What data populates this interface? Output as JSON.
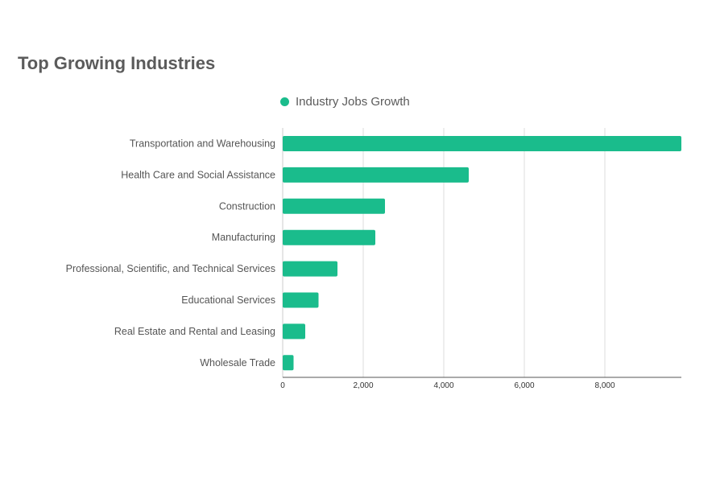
{
  "chart_data": {
    "type": "bar",
    "orientation": "horizontal",
    "title": "Top Growing Industries",
    "xlabel": "",
    "ylabel": "",
    "categories": [
      "Transportation and Warehousing",
      "Health Care and Social Assistance",
      "Construction",
      "Manufacturing",
      "Professional, Scientific, and Technical Services",
      "Educational Services",
      "Real Estate and Rental and Leasing",
      "Wholesale Trade"
    ],
    "series": [
      {
        "name": "Industry Jobs Growth",
        "color": "#1abc8c",
        "values": [
          9900,
          4620,
          2540,
          2300,
          1360,
          890,
          560,
          270
        ]
      }
    ],
    "xlim": [
      0,
      9900
    ],
    "x_ticks": [
      0,
      2000,
      4000,
      6000,
      8000
    ],
    "x_tick_labels": [
      "0",
      "2,000",
      "4,000",
      "6,000",
      "8,000"
    ],
    "grid": "vertical",
    "legend_position": "top-center"
  }
}
